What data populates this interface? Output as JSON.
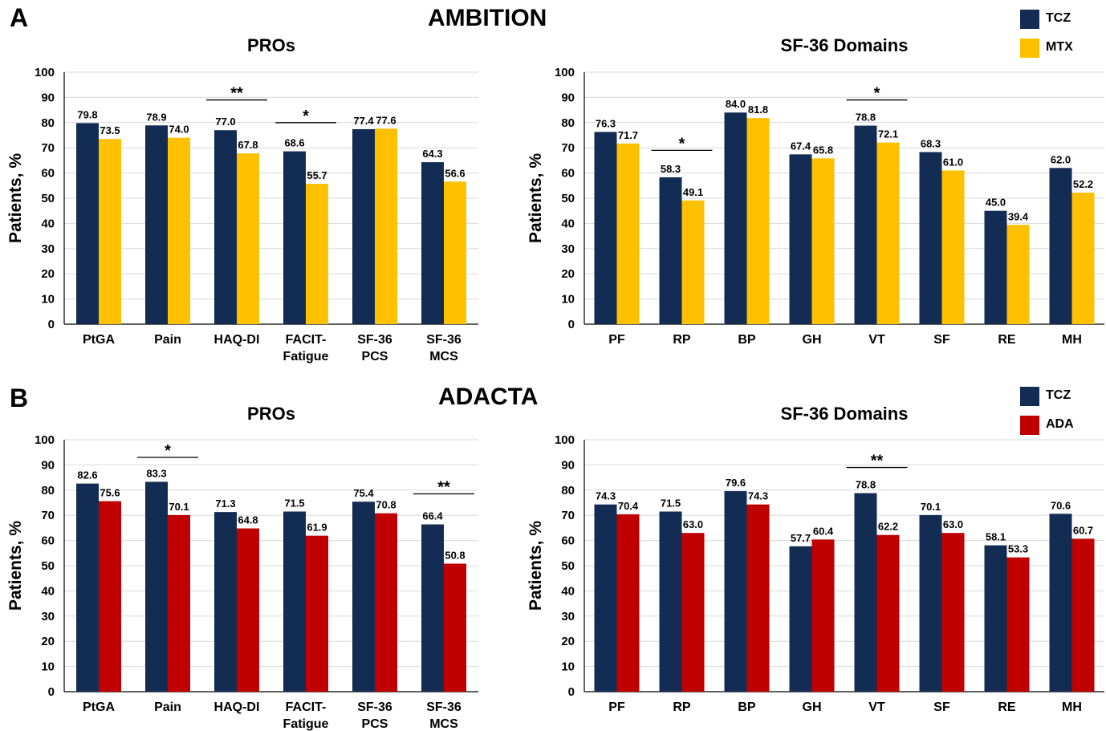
{
  "colors": {
    "tcz": "#132c54",
    "mtx": "#ffc000",
    "ada": "#c00000"
  },
  "panels": [
    {
      "letter": "A",
      "title": "AMBITION",
      "legend": [
        {
          "label": "TCZ",
          "color": "#132c54"
        },
        {
          "label": "MTX",
          "color": "#ffc000"
        }
      ]
    },
    {
      "letter": "B",
      "title": "ADACTA",
      "legend": [
        {
          "label": "TCZ",
          "color": "#132c54"
        },
        {
          "label": "ADA",
          "color": "#c00000"
        }
      ]
    }
  ],
  "chart_data": [
    {
      "type": "bar",
      "title": "PROs",
      "ylabel": "Patients, %",
      "ylim": [
        0,
        100
      ],
      "yticks": [
        0,
        10,
        20,
        30,
        40,
        50,
        60,
        70,
        80,
        90,
        100
      ],
      "categories": [
        "PtGA",
        "Pain",
        "HAQ-DI",
        "FACIT-\nFatigue",
        "SF-36\nPCS",
        "SF-36\nMCS"
      ],
      "series": [
        {
          "name": "TCZ",
          "color": "#132c54",
          "values": [
            79.8,
            78.9,
            77.0,
            68.6,
            77.4,
            64.3
          ],
          "labels": [
            "79.8",
            "78.9",
            "77.0",
            "68.6",
            "77.4",
            "64.3"
          ]
        },
        {
          "name": "MTX",
          "color": "#ffc000",
          "values": [
            73.5,
            74.0,
            67.8,
            55.7,
            77.6,
            56.6
          ],
          "labels": [
            "73.5",
            "74.0",
            "67.8",
            "55.7",
            "77.6",
            "56.6"
          ]
        }
      ],
      "significance": [
        {
          "category_index": 2,
          "marker": "**",
          "level": 89
        },
        {
          "category_index": 3,
          "marker": "*",
          "level": 80
        }
      ]
    },
    {
      "type": "bar",
      "title": "SF-36 Domains",
      "ylabel": "Patients, %",
      "ylim": [
        0,
        100
      ],
      "yticks": [
        0,
        10,
        20,
        30,
        40,
        50,
        60,
        70,
        80,
        90,
        100
      ],
      "categories": [
        "PF",
        "RP",
        "BP",
        "GH",
        "VT",
        "SF",
        "RE",
        "MH"
      ],
      "series": [
        {
          "name": "TCZ",
          "color": "#132c54",
          "values": [
            76.3,
            58.3,
            84.0,
            67.4,
            78.8,
            68.3,
            45.0,
            62.0
          ],
          "labels": [
            "76.3",
            "58.3",
            "84.0",
            "67.4",
            "78.8",
            "68.3",
            "45.0",
            "62.0"
          ]
        },
        {
          "name": "MTX",
          "color": "#ffc000",
          "values": [
            71.7,
            49.1,
            81.8,
            65.8,
            72.1,
            61.0,
            39.4,
            52.2
          ],
          "labels": [
            "71.7",
            "49.1",
            "81.8",
            "65.8",
            "72.1",
            "61.0",
            "39.4",
            "52.2"
          ]
        }
      ],
      "significance": [
        {
          "category_index": 1,
          "marker": "*",
          "level": 69
        },
        {
          "category_index": 4,
          "marker": "*",
          "level": 89
        }
      ]
    },
    {
      "type": "bar",
      "title": "PROs",
      "ylabel": "Patients, %",
      "ylim": [
        0,
        100
      ],
      "yticks": [
        0,
        10,
        20,
        30,
        40,
        50,
        60,
        70,
        80,
        90,
        100
      ],
      "categories": [
        "PtGA",
        "Pain",
        "HAQ-DI",
        "FACIT-\nFatigue",
        "SF-36\nPCS",
        "SF-36\nMCS"
      ],
      "series": [
        {
          "name": "TCZ",
          "color": "#132c54",
          "values": [
            82.6,
            83.3,
            71.3,
            71.5,
            75.4,
            66.4
          ],
          "labels": [
            "82.6",
            "83.3",
            "71.3",
            "71.5",
            "75.4",
            "66.4"
          ]
        },
        {
          "name": "ADA",
          "color": "#c00000",
          "values": [
            75.6,
            70.1,
            64.8,
            61.9,
            70.8,
            50.8
          ],
          "labels": [
            "75.6",
            "70.1",
            "64.8",
            "61.9",
            "70.8",
            "50.8"
          ]
        }
      ],
      "significance": [
        {
          "category_index": 1,
          "marker": "*",
          "level": 93
        },
        {
          "category_index": 5,
          "marker": "**",
          "level": 78.5
        }
      ]
    },
    {
      "type": "bar",
      "title": "SF-36 Domains",
      "ylabel": "Patients, %",
      "ylim": [
        0,
        100
      ],
      "yticks": [
        0,
        10,
        20,
        30,
        40,
        50,
        60,
        70,
        80,
        90,
        100
      ],
      "categories": [
        "PF",
        "RP",
        "BP",
        "GH",
        "VT",
        "SF",
        "RE",
        "MH"
      ],
      "series": [
        {
          "name": "TCZ",
          "color": "#132c54",
          "values": [
            74.3,
            71.5,
            79.6,
            57.7,
            78.8,
            70.1,
            58.1,
            70.6
          ],
          "labels": [
            "74.3",
            "71.5",
            "79.6",
            "57.7",
            "78.8",
            "70.1",
            "58.1",
            "70.6"
          ]
        },
        {
          "name": "ADA",
          "color": "#c00000",
          "values": [
            70.4,
            63.0,
            74.3,
            60.4,
            62.2,
            63.0,
            53.3,
            60.7
          ],
          "labels": [
            "70.4",
            "63.0",
            "74.3",
            "60.4",
            "62.2",
            "63.0",
            "53.3",
            "60.7"
          ]
        }
      ],
      "significance": [
        {
          "category_index": 4,
          "marker": "**",
          "level": 89
        }
      ]
    }
  ]
}
